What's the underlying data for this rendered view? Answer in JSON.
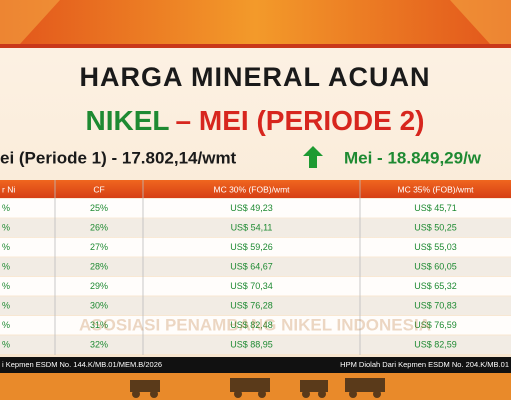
{
  "header": {
    "title": "HARGA MINERAL ACUAN",
    "subtitle_green": "NIKEL",
    "subtitle_red": "– MEI (PERIODE 2)"
  },
  "comparison": {
    "previous": "ei (Periode 1) - 17.802,14/wmt",
    "current": "Mei - 18.849,29/w"
  },
  "watermark": "ASOSIASI PENAMBANG NIKEL INDONESIA",
  "table": {
    "columns": [
      "r Ni",
      "CF",
      "MC 30% (FOB)/wmt",
      "MC 35% (FOB)/wmt"
    ],
    "rows": [
      [
        "%",
        "25%",
        "US$ 49,23",
        "US$ 45,71"
      ],
      [
        "%",
        "26%",
        "US$ 54,11",
        "US$ 50,25"
      ],
      [
        "%",
        "27%",
        "US$ 59,26",
        "US$ 55,03"
      ],
      [
        "%",
        "28%",
        "US$ 64,67",
        "US$ 60,05"
      ],
      [
        "%",
        "29%",
        "US$ 70,34",
        "US$ 65,32"
      ],
      [
        "%",
        "30%",
        "US$ 76,28",
        "US$ 70,83"
      ],
      [
        "%",
        "31%",
        "US$ 82,48",
        "US$ 76,59"
      ],
      [
        "%",
        "32%",
        "US$ 88,95",
        "US$ 82,59"
      ]
    ]
  },
  "footer": {
    "left": "i Kepmen ESDM No. 144.K/MB.01/MEM.B/2026",
    "right": "HPM Diolah Dari Kepmen ESDM No. 204.K/MB.01"
  }
}
